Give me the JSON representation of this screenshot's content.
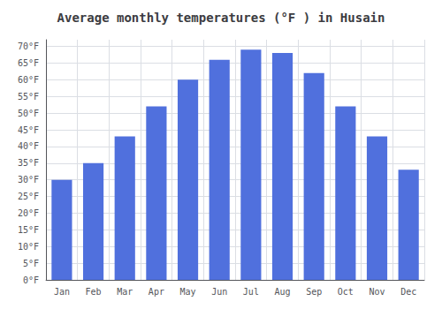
{
  "chart_data": {
    "type": "bar",
    "title": "Average monthly temperatures (°F ) in Husain",
    "categories": [
      "Jan",
      "Feb",
      "Mar",
      "Apr",
      "May",
      "Jun",
      "Jul",
      "Aug",
      "Sep",
      "Oct",
      "Nov",
      "Dec"
    ],
    "values": [
      30,
      35,
      43,
      52,
      60,
      66,
      69,
      68,
      62,
      52,
      43,
      33
    ],
    "ylim": [
      0,
      72
    ],
    "yticks": [
      {
        "value": 0,
        "label": "0°F"
      },
      {
        "value": 5,
        "label": "5°F"
      },
      {
        "value": 10,
        "label": "10°F"
      },
      {
        "value": 15,
        "label": "15°F"
      },
      {
        "value": 20,
        "label": "20°F"
      },
      {
        "value": 25,
        "label": "25°F"
      },
      {
        "value": 30,
        "label": "30°F"
      },
      {
        "value": 35,
        "label": "35°F"
      },
      {
        "value": 40,
        "label": "40°F"
      },
      {
        "value": 45,
        "label": "45°F"
      },
      {
        "value": 50,
        "label": "50°F"
      },
      {
        "value": 55,
        "label": "55°F"
      },
      {
        "value": 60,
        "label": "60°F"
      },
      {
        "value": 65,
        "label": "65°F"
      },
      {
        "value": 70,
        "label": "70°F"
      }
    ],
    "grid": true
  }
}
